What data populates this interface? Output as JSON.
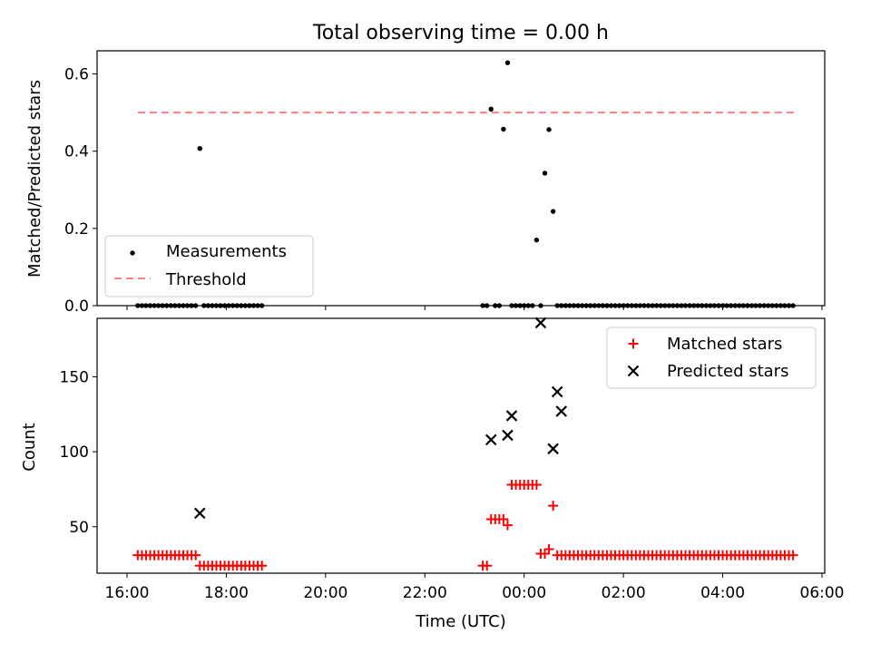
{
  "title": "Total observing time = 0.00 h",
  "colors": {
    "matched": "#ff0000",
    "predicted": "#000000",
    "threshold": "#ff7f7f",
    "measurement": "#000000"
  },
  "chart_data": [
    {
      "type": "scatter",
      "ylabel": "Matched/Predicted stars",
      "xlabel": "",
      "xlim": [
        "16:00",
        "06:00"
      ],
      "ylim": [
        0,
        0.66
      ],
      "yticks": [
        0.0,
        0.2,
        0.4,
        0.6
      ],
      "ytick_labels": [
        "0.0",
        "0.2",
        "0.4",
        "0.6"
      ],
      "legend": {
        "position": "lower-left",
        "entries": [
          "Measurements",
          "Threshold"
        ]
      },
      "threshold": {
        "name": "Threshold",
        "y": 0.5,
        "x_start": "16:13",
        "x_end": "05:26"
      },
      "series": [
        {
          "name": "Measurements",
          "x": [
            "16:13",
            "16:18",
            "16:23",
            "16:28",
            "16:33",
            "16:38",
            "16:43",
            "16:48",
            "16:53",
            "16:58",
            "17:03",
            "17:08",
            "17:13",
            "17:18",
            "17:23",
            "17:28",
            "17:33",
            "17:38",
            "17:43",
            "17:48",
            "17:53",
            "17:58",
            "18:03",
            "18:08",
            "18:13",
            "18:18",
            "18:23",
            "18:28",
            "18:33",
            "18:38",
            "18:43",
            "23:10",
            "23:15",
            "23:20",
            "23:25",
            "23:30",
            "23:35",
            "23:40",
            "23:45",
            "23:50",
            "23:55",
            "00:00",
            "00:05",
            "00:10",
            "00:15",
            "00:20",
            "00:25",
            "00:30",
            "00:35",
            "00:40",
            "00:45",
            "00:50",
            "00:55",
            "01:00",
            "01:05",
            "01:10",
            "01:15",
            "01:20",
            "01:25",
            "01:30",
            "01:35",
            "01:40",
            "01:45",
            "01:50",
            "01:55",
            "02:00",
            "02:05",
            "02:10",
            "02:15",
            "02:20",
            "02:25",
            "02:30",
            "02:35",
            "02:40",
            "02:45",
            "02:50",
            "02:55",
            "03:00",
            "03:05",
            "03:10",
            "03:15",
            "03:20",
            "03:25",
            "03:30",
            "03:35",
            "03:40",
            "03:45",
            "03:50",
            "03:55",
            "04:00",
            "04:05",
            "04:10",
            "04:15",
            "04:20",
            "04:25",
            "04:30",
            "04:35",
            "04:40",
            "04:45",
            "04:50",
            "04:55",
            "05:00",
            "05:05",
            "05:10",
            "05:15",
            "05:20",
            "05:25"
          ],
          "y": [
            0,
            0,
            0,
            0,
            0,
            0,
            0,
            0,
            0,
            0,
            0,
            0,
            0,
            0,
            0,
            0.407,
            0,
            0,
            0,
            0,
            0,
            0,
            0,
            0,
            0,
            0,
            0,
            0,
            0,
            0,
            0,
            0,
            0,
            0.509,
            0,
            0,
            0.457,
            0.629,
            0,
            0,
            0,
            0,
            0,
            0,
            0.17,
            0,
            0.343,
            0.456,
            0.244,
            0,
            0,
            0,
            0,
            0,
            0,
            0,
            0,
            0,
            0,
            0,
            0,
            0,
            0,
            0,
            0,
            0,
            0,
            0,
            0,
            0,
            0,
            0,
            0,
            0,
            0,
            0,
            0,
            0,
            0,
            0,
            0,
            0,
            0,
            0,
            0,
            0,
            0,
            0,
            0,
            0,
            0,
            0,
            0,
            0,
            0,
            0,
            0,
            0,
            0,
            0,
            0,
            0,
            0,
            0,
            0,
            0,
            0
          ]
        }
      ]
    },
    {
      "type": "scatter",
      "xlabel": "Time (UTC)",
      "ylabel": "Count",
      "xlim": [
        "16:00",
        "06:00"
      ],
      "ylim": [
        19,
        189
      ],
      "yticks": [
        50,
        100,
        150
      ],
      "ytick_labels": [
        "50",
        "100",
        "150"
      ],
      "xticks": [
        "16:00",
        "18:00",
        "20:00",
        "22:00",
        "00:00",
        "02:00",
        "04:00",
        "06:00"
      ],
      "legend": {
        "position": "upper-right",
        "entries": [
          "Matched stars",
          "Predicted stars"
        ]
      },
      "series": [
        {
          "name": "Matched stars",
          "marker": "+",
          "x": [
            "16:13",
            "16:18",
            "16:23",
            "16:28",
            "16:33",
            "16:38",
            "16:43",
            "16:48",
            "16:53",
            "16:58",
            "17:03",
            "17:08",
            "17:13",
            "17:18",
            "17:23",
            "17:28",
            "17:33",
            "17:38",
            "17:43",
            "17:48",
            "17:53",
            "17:58",
            "18:03",
            "18:08",
            "18:13",
            "18:18",
            "18:23",
            "18:28",
            "18:33",
            "18:38",
            "18:43",
            "23:10",
            "23:15",
            "23:20",
            "23:25",
            "23:30",
            "23:35",
            "23:40",
            "23:45",
            "23:50",
            "23:55",
            "00:00",
            "00:05",
            "00:10",
            "00:15",
            "00:20",
            "00:25",
            "00:30",
            "00:35",
            "00:40",
            "00:45",
            "00:50",
            "00:55",
            "01:00",
            "01:05",
            "01:10",
            "01:15",
            "01:20",
            "01:25",
            "01:30",
            "01:35",
            "01:40",
            "01:45",
            "01:50",
            "01:55",
            "02:00",
            "02:05",
            "02:10",
            "02:15",
            "02:20",
            "02:25",
            "02:30",
            "02:35",
            "02:40",
            "02:45",
            "02:50",
            "02:55",
            "03:00",
            "03:05",
            "03:10",
            "03:15",
            "03:20",
            "03:25",
            "03:30",
            "03:35",
            "03:40",
            "03:45",
            "03:50",
            "03:55",
            "04:00",
            "04:05",
            "04:10",
            "04:15",
            "04:20",
            "04:25",
            "04:30",
            "04:35",
            "04:40",
            "04:45",
            "04:50",
            "04:55",
            "05:00",
            "05:05",
            "05:10",
            "05:15",
            "05:20",
            "05:25"
          ],
          "y": [
            31,
            31,
            31,
            31,
            31,
            31,
            31,
            31,
            31,
            31,
            31,
            31,
            31,
            31,
            31,
            24,
            24,
            24,
            24,
            24,
            24,
            24,
            24,
            24,
            24,
            24,
            24,
            24,
            24,
            24,
            24,
            24,
            24,
            55,
            55,
            55,
            55,
            51,
            78,
            78,
            78,
            78,
            78,
            78,
            78,
            32,
            32,
            35,
            64,
            31,
            31,
            31,
            31,
            31,
            31,
            31,
            31,
            31,
            31,
            31,
            31,
            31,
            31,
            31,
            31,
            31,
            31,
            31,
            31,
            31,
            31,
            31,
            31,
            31,
            31,
            31,
            31,
            31,
            31,
            31,
            31,
            31,
            31,
            31,
            31,
            31,
            31,
            31,
            31,
            31,
            31,
            31,
            31,
            31,
            31,
            31,
            31,
            31,
            31,
            31,
            31,
            31,
            31,
            31,
            31,
            31,
            31
          ]
        },
        {
          "name": "Predicted stars",
          "marker": "x",
          "x": [
            "17:28",
            "23:20",
            "23:40",
            "23:45",
            "00:20",
            "00:35",
            "00:40",
            "00:45"
          ],
          "y": [
            59,
            108,
            111,
            124,
            186,
            102,
            140,
            127
          ]
        }
      ]
    }
  ]
}
